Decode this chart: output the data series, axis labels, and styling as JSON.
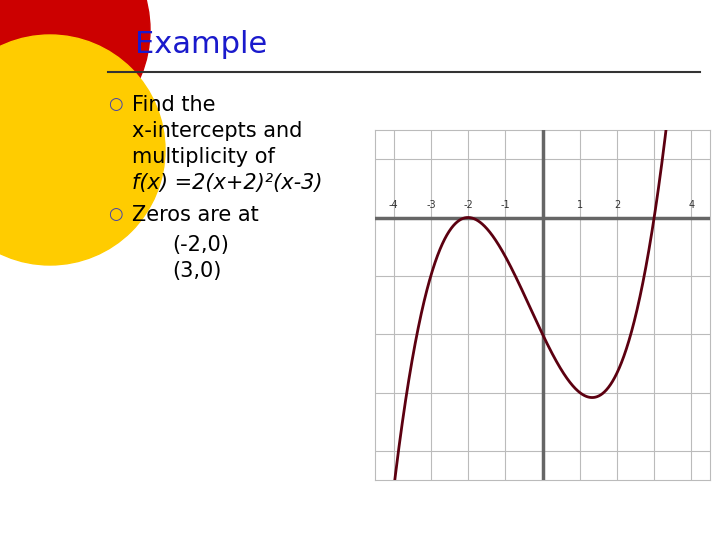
{
  "title": "Example",
  "title_color": "#1A1ACC",
  "title_fontsize": 22,
  "bg_color": "#FFFFFF",
  "bullet1_lines": [
    "Find the",
    "x-intercepts and",
    "multiplicity of"
  ],
  "formula_line": "f(x) =2(x+2)²(x-3)",
  "bullet2_line": "Zeros are at",
  "zeros": [
    "(-2,0)",
    "(3,0)"
  ],
  "text_color": "#000000",
  "text_fontsize": 15,
  "bullet_color": "#4444AA",
  "red_circle_color": "#CC0000",
  "yellow_circle_color": "#FFCC00",
  "plot_xlim": [
    -4.5,
    4.5
  ],
  "plot_ylim": [
    -54,
    18
  ],
  "plot_xticks": [
    -4,
    -3,
    -2,
    -1,
    1,
    2,
    4
  ],
  "curve_color": "#5C0010",
  "curve_linewidth": 2.0,
  "axis_color": "#666666",
  "axis_linewidth": 2.5,
  "grid_color": "#BBBBBB",
  "grid_linewidth": 0.8,
  "hline_levels": [
    -48,
    -36,
    -24,
    -12,
    0,
    12
  ],
  "vline_positions": [
    -4,
    -3,
    -2,
    -1,
    0,
    1,
    2,
    3,
    4
  ]
}
